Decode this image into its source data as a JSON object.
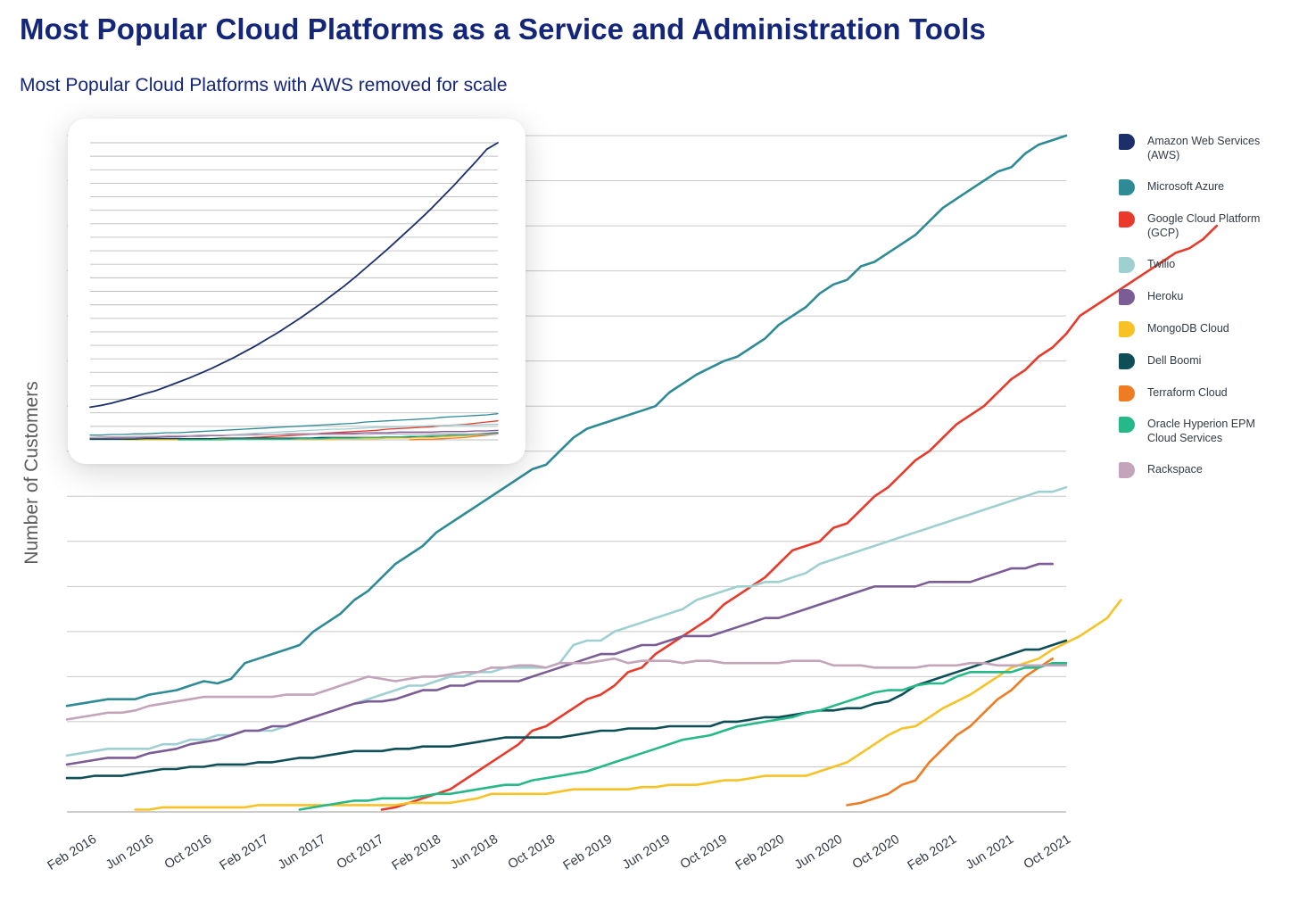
{
  "title": "Most Popular Cloud Platforms as a Service and Administration Tools",
  "subtitle": "Most Popular Cloud Platforms with AWS removed for scale",
  "colors": {
    "text": "#14267a",
    "grid": "#c9c9c9",
    "axis_label": "#5c5c5c"
  },
  "chart_data": [
    {
      "type": "line",
      "title": "Most Popular Cloud Platforms with AWS removed for scale",
      "xlabel": "",
      "ylabel": "Number of Customers",
      "y_tick_labels_shown": false,
      "ylim": [
        0,
        150
      ],
      "grid": true,
      "legend": "right",
      "x_tick_labels": [
        "Feb 2016",
        "Jun 2016",
        "Oct 2016",
        "Feb 2017",
        "Jun 2017",
        "Oct 2017",
        "Feb 2018",
        "Jun 2018",
        "Oct 2018",
        "Feb 2019",
        "Jun 2019",
        "Oct 2019",
        "Feb 2020",
        "Jun 2020",
        "Oct 2020",
        "Feb 2021",
        "Jun 2021",
        "Oct 2021"
      ],
      "series": [
        {
          "name": "Amazon Web Services (AWS)",
          "color": "#1c2f6b",
          "values": []
        },
        {
          "name": "Microsoft Azure",
          "color": "#2e8b96",
          "start": 0,
          "values": [
            23.5,
            24,
            24.5,
            25,
            25,
            25,
            26,
            26.5,
            27,
            28,
            29,
            28.5,
            29.5,
            33,
            34,
            35,
            36,
            37,
            40,
            42,
            44,
            47,
            49,
            52,
            55,
            57,
            59,
            62,
            64,
            66,
            68,
            70,
            72,
            74,
            76,
            77,
            80,
            83,
            85,
            86,
            87,
            88,
            89,
            90,
            93,
            95,
            97,
            98.5,
            100,
            101,
            103,
            105,
            108,
            110,
            112,
            115,
            117,
            118,
            121,
            122,
            124,
            126,
            128,
            131,
            134,
            136,
            138,
            140,
            142,
            143,
            146,
            148,
            149,
            150
          ]
        },
        {
          "name": "Google Cloud Platform (GCP)",
          "color": "#e8392b",
          "start": 23,
          "values": [
            0.5,
            1,
            2,
            3,
            4,
            5,
            7,
            9,
            11,
            13,
            15,
            18,
            19,
            21,
            23,
            25,
            26,
            28,
            31,
            32,
            35,
            37,
            39,
            41,
            43,
            46,
            48,
            50,
            52,
            55,
            58,
            59,
            60,
            63,
            64,
            67,
            70,
            72,
            75,
            78,
            80,
            83,
            86,
            88,
            90,
            93,
            96,
            98,
            101,
            103,
            106,
            110,
            112,
            114,
            116,
            118,
            120,
            122,
            124,
            125,
            127,
            130
          ]
        },
        {
          "name": "Twilio",
          "color": "#9fd0d1",
          "start": 0,
          "values": [
            12.5,
            13,
            13.5,
            14,
            14,
            14,
            14,
            15,
            15,
            16,
            16,
            17,
            17,
            18,
            18,
            18,
            19,
            20,
            21,
            22,
            23,
            24,
            25,
            26,
            27,
            28,
            28,
            29,
            30,
            30,
            31,
            31,
            32,
            32,
            32,
            32,
            33,
            37,
            38,
            38,
            40,
            41,
            42,
            43,
            44,
            45,
            47,
            48,
            49,
            50,
            50,
            51,
            51,
            52,
            53,
            55,
            56,
            57,
            58,
            59,
            60,
            61,
            62,
            63,
            64,
            65,
            66,
            67,
            68,
            69,
            70,
            71,
            71,
            72
          ]
        },
        {
          "name": "Heroku",
          "color": "#7b5c95",
          "start": 0,
          "values": [
            10.5,
            11,
            11.5,
            12,
            12,
            12,
            13,
            13.5,
            14,
            15,
            15.5,
            16,
            17,
            18,
            18,
            19,
            19,
            20,
            21,
            22,
            23,
            24,
            24.5,
            24.5,
            25,
            26,
            27,
            27,
            28,
            28,
            29,
            29,
            29,
            29,
            30,
            31,
            32,
            33,
            34,
            35,
            35,
            36,
            37,
            37,
            38,
            39,
            39,
            39,
            40,
            41,
            42,
            43,
            43,
            44,
            45,
            46,
            47,
            48,
            49,
            50,
            50,
            50,
            50,
            51,
            51,
            51,
            51,
            52,
            53,
            54,
            54,
            55,
            55
          ]
        },
        {
          "name": "MongoDB Cloud",
          "color": "#f7c226",
          "start": 5,
          "values": [
            0.5,
            0.5,
            1,
            1,
            1,
            1,
            1,
            1,
            1,
            1.5,
            1.5,
            1.5,
            1.5,
            1.5,
            1.5,
            1.5,
            1.5,
            1.5,
            1.5,
            1.5,
            2,
            2,
            2,
            2,
            2.5,
            3,
            4,
            4,
            4,
            4,
            4,
            4.5,
            5,
            5,
            5,
            5,
            5,
            5.5,
            5.5,
            6,
            6,
            6,
            6.5,
            7,
            7,
            7.5,
            8,
            8,
            8,
            8,
            9,
            10,
            11,
            13,
            15,
            17,
            18.5,
            19,
            21,
            23,
            24.5,
            26,
            28,
            30,
            32,
            33,
            34,
            36,
            37.5,
            39,
            41,
            43,
            47
          ]
        },
        {
          "name": "Dell Boomi",
          "color": "#0e4e56",
          "start": 0,
          "values": [
            7.5,
            7.5,
            8,
            8,
            8,
            8.5,
            9,
            9.5,
            9.5,
            10,
            10,
            10.5,
            10.5,
            10.5,
            11,
            11,
            11.5,
            12,
            12,
            12.5,
            13,
            13.5,
            13.5,
            13.5,
            14,
            14,
            14.5,
            14.5,
            14.5,
            15,
            15.5,
            16,
            16.5,
            16.5,
            16.5,
            16.5,
            16.5,
            17,
            17.5,
            18,
            18,
            18.5,
            18.5,
            18.5,
            19,
            19,
            19,
            19,
            20,
            20,
            20.5,
            21,
            21,
            21.5,
            22,
            22.5,
            22.5,
            23,
            23,
            24,
            24.5,
            26,
            28,
            29,
            30,
            31,
            32,
            33,
            34,
            35,
            36,
            36,
            37,
            38
          ]
        },
        {
          "name": "Terraform Cloud",
          "color": "#ef7b22",
          "start": 57,
          "values": [
            1.5,
            2,
            3,
            4,
            6,
            7,
            11,
            14,
            17,
            19,
            22,
            25,
            27,
            30,
            32,
            34
          ]
        },
        {
          "name": "Oracle Hyperion EPM Cloud Services",
          "color": "#25b889",
          "start": 17,
          "values": [
            0.5,
            1,
            1.5,
            2,
            2.5,
            2.5,
            3,
            3,
            3,
            3.5,
            4,
            4,
            4.5,
            5,
            5.5,
            6,
            6,
            7,
            7.5,
            8,
            8.5,
            9,
            10,
            11,
            12,
            13,
            14,
            15,
            16,
            16.5,
            17,
            18,
            19,
            19.5,
            20,
            20.5,
            21,
            22,
            22.5,
            23.5,
            24.5,
            25.5,
            26.5,
            27,
            27,
            28,
            28.5,
            28.5,
            30,
            31,
            31,
            31,
            31,
            32,
            32,
            33,
            33
          ]
        },
        {
          "name": "Rackspace",
          "color": "#c3a4b8",
          "start": 0,
          "values": [
            20.5,
            21,
            21.5,
            22,
            22,
            22.5,
            23.5,
            24,
            24.5,
            25,
            25.5,
            25.5,
            25.5,
            25.5,
            25.5,
            25.5,
            26,
            26,
            26,
            27,
            28,
            29,
            30,
            29.5,
            29,
            29.5,
            30,
            30,
            30.5,
            31,
            31,
            32,
            32,
            32.5,
            32.5,
            32,
            33,
            33,
            33,
            33.5,
            34,
            33,
            33.5,
            33.5,
            33.5,
            33,
            33.5,
            33.5,
            33,
            33,
            33,
            33,
            33,
            33.5,
            33.5,
            33.5,
            32.5,
            32.5,
            32.5,
            32,
            32,
            32,
            32,
            32.5,
            32.5,
            32.5,
            33,
            33,
            32.5,
            32.5,
            32.5,
            32.5,
            32.5,
            32.5
          ]
        }
      ]
    },
    {
      "type": "line",
      "title": "",
      "xlabel": "",
      "ylabel": "",
      "grid": true,
      "legend": "none",
      "ylim": [
        0,
        500
      ],
      "series": [
        {
          "name": "Amazon Web Services (AWS)",
          "color": "#1c2f6b",
          "start": 0,
          "values": [
            55,
            58,
            62,
            67,
            72,
            78,
            83,
            90,
            97,
            104,
            112,
            120,
            129,
            138,
            148,
            158,
            169,
            180,
            192,
            204,
            217,
            230,
            244,
            258,
            273,
            289,
            305,
            321,
            338,
            355,
            372,
            390,
            409,
            428,
            448,
            468,
            489,
            500
          ]
        },
        {
          "name": "Microsoft Azure",
          "color": "#2e8b96",
          "start": 0,
          "values": [
            8,
            8,
            9,
            9,
            10,
            10,
            11,
            12,
            12,
            13,
            14,
            15,
            16,
            17,
            18,
            19,
            20,
            21,
            22,
            23,
            24,
            25,
            26,
            27,
            28,
            30,
            31,
            32,
            33,
            34,
            35,
            36,
            38,
            39,
            40,
            41,
            42,
            44
          ]
        },
        {
          "name": "Google Cloud Platform (GCP)",
          "color": "#e8392b",
          "start": 12,
          "values": [
            1,
            2,
            3,
            4,
            5,
            6,
            7,
            8,
            9,
            11,
            12,
            13,
            14,
            15,
            16,
            18,
            19,
            20,
            21,
            22,
            24,
            25,
            26,
            28,
            30,
            32
          ]
        },
        {
          "name": "Twilio",
          "color": "#9fd0d1",
          "start": 0,
          "values": [
            3,
            3,
            3,
            4,
            4,
            4,
            5,
            5,
            6,
            6,
            7,
            7,
            8,
            9,
            10,
            11,
            12,
            13,
            14,
            15,
            16,
            17,
            18,
            18,
            19,
            20,
            21,
            21,
            22,
            23,
            23,
            24,
            24,
            25,
            25,
            25,
            26,
            26
          ]
        },
        {
          "name": "Heroku",
          "color": "#7b5c95",
          "start": 0,
          "values": [
            2,
            2,
            3,
            3,
            3,
            4,
            4,
            5,
            5,
            6,
            6,
            7,
            7,
            8,
            8,
            9,
            9,
            9,
            10,
            10,
            10,
            10,
            11,
            11,
            11,
            12,
            12,
            12,
            13,
            13,
            13,
            13,
            14,
            14,
            14,
            15,
            15,
            16
          ]
        },
        {
          "name": "MongoDB Cloud",
          "color": "#f7c226",
          "start": 3,
          "values": [
            0,
            0,
            0,
            0,
            0,
            0,
            0,
            0,
            1,
            1,
            1,
            1,
            1,
            1,
            1,
            1,
            1,
            1,
            1,
            1,
            2,
            2,
            2,
            2,
            3,
            3,
            3,
            4,
            4,
            5,
            6,
            7,
            8,
            9,
            10
          ]
        },
        {
          "name": "Dell Boomi",
          "color": "#0e4e56",
          "start": 0,
          "values": [
            1,
            1,
            1,
            1,
            1,
            2,
            2,
            2,
            2,
            2,
            2,
            2,
            3,
            3,
            3,
            3,
            3,
            3,
            3,
            3,
            3,
            4,
            4,
            4,
            4,
            4,
            4,
            5,
            5,
            5,
            6,
            6,
            7,
            8,
            9,
            10,
            11,
            12
          ]
        },
        {
          "name": "Terraform Cloud",
          "color": "#ef7b22",
          "start": 29,
          "values": [
            0,
            1,
            1,
            2,
            3,
            4,
            6,
            8,
            10
          ]
        },
        {
          "name": "Oracle Hyperion EPM Cloud Services",
          "color": "#25b889",
          "start": 8,
          "values": [
            0,
            0,
            0,
            0,
            0,
            1,
            1,
            1,
            1,
            1,
            1,
            2,
            2,
            2,
            3,
            3,
            3,
            4,
            4,
            5,
            5,
            6,
            6,
            7,
            7,
            8,
            8,
            9,
            9,
            10
          ]
        },
        {
          "name": "Rackspace",
          "color": "#c3a4b8",
          "start": 0,
          "values": [
            4,
            5,
            5,
            5,
            6,
            6,
            6,
            7,
            7,
            7,
            8,
            8,
            8,
            8,
            8,
            8,
            9,
            9,
            9,
            9,
            9,
            9,
            9,
            9,
            9,
            9,
            10,
            10,
            10,
            10,
            10,
            10,
            10,
            10,
            10,
            10,
            10,
            10
          ]
        }
      ]
    }
  ]
}
